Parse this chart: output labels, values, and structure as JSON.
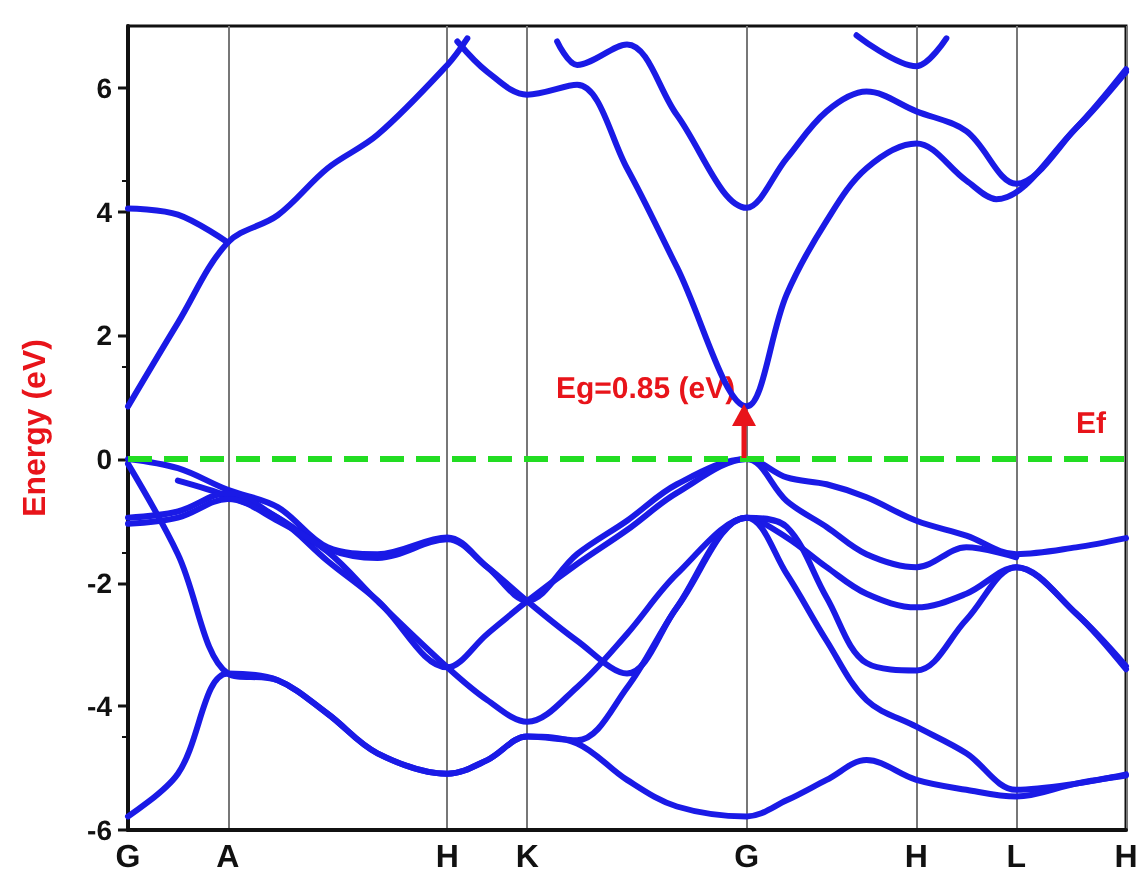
{
  "chart_data": {
    "type": "line",
    "ylabel": "Energy (eV)",
    "categories": [
      "G",
      null,
      null,
      null,
      null,
      null,
      null,
      null,
      null,
      null,
      "A",
      null,
      null,
      null,
      null,
      null,
      null,
      null,
      null,
      null,
      null,
      null,
      null,
      null,
      null,
      null,
      null,
      null,
      null,
      null,
      null,
      null,
      "H",
      null,
      null,
      null,
      null,
      null,
      null,
      null,
      "K",
      null,
      null,
      null,
      null,
      null,
      null,
      null,
      null,
      null,
      null,
      null,
      null,
      null,
      null,
      null,
      null,
      null,
      null,
      null,
      null,
      null,
      "G",
      null,
      null,
      null,
      null,
      null,
      null,
      null,
      null,
      null,
      null,
      null,
      null,
      null,
      null,
      null,
      null,
      "H",
      null,
      null,
      null,
      null,
      null,
      null,
      null,
      null,
      null,
      "L",
      null,
      null,
      null,
      null,
      null,
      null,
      null,
      null,
      null,
      null,
      "H"
    ],
    "ylim": [
      -6,
      7
    ],
    "yticks": [
      -6,
      -4,
      -2,
      0,
      2,
      4,
      6
    ],
    "grid": "x",
    "marker": "none",
    "line_style": "solid",
    "series": [
      {
        "color": "#1a1ae6",
        "values": [
          0.85,
          null,
          null,
          null,
          null,
          2.2,
          null,
          null,
          null,
          null,
          3.5,
          null,
          null,
          null,
          null,
          3.94,
          null,
          null,
          null,
          null,
          4.7,
          null,
          null,
          null,
          null,
          5.24,
          null,
          null,
          null,
          null,
          null,
          null,
          6.37,
          null,
          6.8,
          null,
          null,
          null,
          null,
          null,
          null,
          null,
          null,
          null,
          null,
          null,
          null,
          null,
          null,
          null,
          null,
          null,
          null,
          null,
          null,
          null,
          null,
          null,
          null,
          null,
          null,
          null,
          null,
          null,
          null,
          null,
          null,
          null,
          null,
          null,
          null,
          null,
          null,
          null,
          null,
          null,
          null,
          null,
          null,
          null,
          null,
          null,
          null,
          null,
          null,
          null,
          null,
          null,
          null,
          null,
          null,
          null,
          null,
          null,
          null,
          null,
          null,
          null,
          null,
          null,
          null
        ]
      },
      {
        "color": "#1a1ae6",
        "values": [
          4.05,
          null,
          null,
          null,
          null,
          3.95,
          null,
          null,
          null,
          null,
          3.5,
          null,
          null,
          null,
          null,
          null,
          null,
          null,
          null,
          null,
          null,
          null,
          null,
          null,
          null,
          null,
          null,
          null,
          null,
          null,
          null,
          null,
          null,
          null,
          null,
          null,
          null,
          null,
          null,
          null,
          null,
          null,
          null,
          null,
          null,
          null,
          null,
          null,
          null,
          null,
          null,
          null,
          null,
          null,
          null,
          null,
          null,
          null,
          null,
          null,
          null,
          null,
          null,
          null,
          null,
          null,
          null,
          null,
          null,
          null,
          null,
          null,
          null,
          null,
          null,
          null,
          null,
          null,
          null,
          null,
          null,
          null,
          null,
          null,
          null,
          null,
          null,
          null,
          null,
          null,
          null,
          null,
          null,
          null,
          null,
          null,
          null,
          null,
          null,
          null,
          null
        ]
      },
      {
        "color": "#1a1ae6",
        "values": [
          null,
          null,
          null,
          null,
          null,
          null,
          null,
          null,
          null,
          null,
          null,
          null,
          null,
          null,
          null,
          null,
          null,
          null,
          null,
          null,
          null,
          null,
          null,
          null,
          null,
          null,
          null,
          null,
          null,
          null,
          null,
          null,
          null,
          6.75,
          null,
          null,
          6.26,
          null,
          null,
          null,
          5.89,
          null,
          null,
          null,
          null,
          6.05,
          null,
          null,
          null,
          null,
          4.7,
          null,
          null,
          null,
          null,
          3.1,
          null,
          null,
          null,
          null,
          null,
          null,
          0.85,
          null,
          null,
          null,
          2.66,
          null,
          null,
          null,
          3.85,
          null,
          null,
          null,
          4.7,
          null,
          null,
          null,
          null,
          5.1,
          null,
          null,
          null,
          null,
          4.5,
          null,
          null,
          4.2,
          null,
          null,
          null,
          null,
          null,
          null,
          null,
          5.35,
          null,
          null,
          null,
          null,
          6.26
        ]
      },
      {
        "color": "#1a1ae6",
        "values": [
          null,
          null,
          null,
          null,
          null,
          null,
          null,
          null,
          null,
          null,
          null,
          null,
          null,
          null,
          null,
          null,
          null,
          null,
          null,
          null,
          null,
          null,
          null,
          null,
          null,
          null,
          null,
          null,
          null,
          null,
          null,
          null,
          null,
          null,
          null,
          null,
          null,
          null,
          null,
          null,
          null,
          null,
          null,
          6.75,
          null,
          6.37,
          null,
          null,
          null,
          null,
          6.7,
          null,
          null,
          null,
          null,
          5.56,
          null,
          null,
          null,
          null,
          null,
          null,
          4.06,
          null,
          null,
          null,
          4.86,
          null,
          null,
          null,
          5.62,
          null,
          null,
          null,
          5.94,
          null,
          null,
          null,
          null,
          5.62,
          null,
          null,
          null,
          null,
          5.3,
          null,
          null,
          null,
          null,
          4.45,
          null,
          null,
          null,
          null,
          null,
          5.35,
          null,
          null,
          null,
          null,
          6.3
        ]
      },
      {
        "color": "#1a1ae6",
        "values": [
          null,
          null,
          null,
          null,
          null,
          null,
          null,
          null,
          null,
          null,
          null,
          null,
          null,
          null,
          null,
          null,
          null,
          null,
          null,
          null,
          null,
          null,
          null,
          null,
          null,
          null,
          null,
          null,
          null,
          null,
          null,
          null,
          null,
          null,
          null,
          null,
          null,
          null,
          null,
          null,
          null,
          null,
          null,
          null,
          null,
          null,
          null,
          null,
          null,
          null,
          null,
          null,
          null,
          null,
          null,
          null,
          null,
          null,
          null,
          null,
          null,
          null,
          null,
          null,
          null,
          null,
          null,
          null,
          null,
          null,
          null,
          null,
          null,
          6.85,
          null,
          null,
          null,
          null,
          null,
          6.35,
          null,
          null,
          6.8,
          null,
          null,
          null,
          null,
          null,
          null,
          null,
          null,
          null,
          null,
          null,
          null,
          null,
          null,
          null,
          null,
          null,
          null
        ]
      },
      {
        "color": "#1a1ae6",
        "values": [
          0,
          null,
          null,
          null,
          null,
          -0.15,
          null,
          null,
          null,
          null,
          -0.5,
          null,
          null,
          null,
          null,
          -0.78,
          null,
          null,
          null,
          null,
          -1.43,
          null,
          null,
          null,
          null,
          -1.54,
          null,
          null,
          null,
          null,
          null,
          null,
          -1.27,
          null,
          null,
          null,
          -1.75,
          null,
          null,
          null,
          -2.29,
          null,
          null,
          null,
          null,
          -1.54,
          null,
          null,
          null,
          null,
          -1.0,
          null,
          null,
          null,
          null,
          -0.41,
          null,
          null,
          null,
          null,
          null,
          null,
          0,
          null,
          null,
          null,
          -0.3,
          null,
          null,
          null,
          -0.41,
          null,
          null,
          null,
          -0.62,
          null,
          null,
          null,
          null,
          -1.0,
          null,
          null,
          null,
          null,
          -1.24,
          null,
          null,
          null,
          null,
          -1.54,
          null,
          null,
          null,
          null,
          null,
          -1.43,
          null,
          null,
          null,
          null,
          -1.28
        ]
      },
      {
        "color": "#1a1ae6",
        "values": [
          null,
          null,
          null,
          null,
          null,
          -0.35,
          null,
          null,
          null,
          null,
          -0.6,
          null,
          null,
          null,
          null,
          -0.95,
          null,
          null,
          null,
          null,
          -1.65,
          null,
          null,
          null,
          null,
          -2.29,
          null,
          null,
          null,
          null,
          null,
          null,
          -3.37,
          null,
          null,
          null,
          -2.83,
          null,
          null,
          null,
          -2.3,
          null,
          null,
          null,
          null,
          -1.7,
          null,
          null,
          null,
          null,
          -1.15,
          null,
          null,
          null,
          null,
          -0.55,
          null,
          null,
          null,
          null,
          null,
          null,
          0,
          null,
          null,
          null,
          -0.68,
          null,
          null,
          null,
          -1.1,
          null,
          null,
          null,
          -1.54,
          null,
          null,
          null,
          null,
          -1.75,
          null,
          null,
          null,
          null,
          -1.43,
          null,
          null,
          null,
          null,
          -1.59,
          null,
          null,
          null,
          null,
          null,
          null,
          null,
          null,
          null,
          null,
          null
        ]
      },
      {
        "color": "#1a1ae6",
        "values": [
          -0.95,
          null,
          null,
          null,
          null,
          -0.85,
          null,
          null,
          null,
          null,
          -0.55,
          null,
          null,
          null,
          null,
          -0.95,
          null,
          null,
          null,
          null,
          -1.45,
          null,
          null,
          null,
          null,
          -1.6,
          null,
          null,
          null,
          null,
          null,
          null,
          -1.3,
          null,
          null,
          null,
          -1.75,
          null,
          null,
          null,
          -2.3,
          null,
          null,
          null,
          null,
          -2.94,
          null,
          null,
          null,
          null,
          -3.47,
          null,
          null,
          null,
          null,
          -2.4,
          null,
          null,
          null,
          null,
          null,
          null,
          -0.95,
          null,
          null,
          null,
          -1.27,
          null,
          null,
          null,
          -1.75,
          null,
          null,
          null,
          -2.18,
          null,
          null,
          null,
          null,
          -2.4,
          null,
          null,
          null,
          null,
          -2.18,
          null,
          null,
          null,
          null,
          -1.75,
          null,
          null,
          null,
          null,
          null,
          -2.5,
          null,
          null,
          null,
          null,
          -3.35
        ]
      },
      {
        "color": "#1a1ae6",
        "values": [
          -1.05,
          null,
          null,
          null,
          null,
          -0.95,
          null,
          null,
          null,
          null,
          -0.65,
          null,
          null,
          null,
          null,
          -1.0,
          null,
          null,
          null,
          null,
          -1.5,
          null,
          null,
          null,
          null,
          -2.3,
          null,
          null,
          null,
          null,
          null,
          null,
          -3.37,
          null,
          null,
          null,
          -3.9,
          null,
          null,
          null,
          -4.25,
          null,
          null,
          null,
          null,
          -3.69,
          null,
          null,
          null,
          null,
          -2.83,
          null,
          null,
          null,
          null,
          -1.86,
          null,
          null,
          null,
          null,
          null,
          null,
          -0.95,
          null,
          null,
          null,
          -1.86,
          null,
          null,
          null,
          -2.94,
          null,
          null,
          null,
          -3.9,
          null,
          null,
          null,
          null,
          -4.33,
          null,
          null,
          null,
          null,
          -4.76,
          null,
          null,
          null,
          null,
          -5.35,
          null,
          null,
          null,
          null,
          null,
          -5.25,
          null,
          null,
          null,
          null,
          -5.1
        ]
      },
      {
        "color": "#1a1ae6",
        "values": [
          -0.08,
          null,
          null,
          null,
          null,
          -1.54,
          null,
          null,
          null,
          null,
          -3.47,
          null,
          null,
          null,
          null,
          -3.58,
          null,
          null,
          null,
          null,
          -4.12,
          null,
          null,
          null,
          null,
          -4.76,
          null,
          null,
          null,
          null,
          null,
          null,
          -5.09,
          null,
          null,
          null,
          -4.87,
          null,
          null,
          null,
          -4.49,
          null,
          null,
          null,
          null,
          -4.6,
          null,
          null,
          null,
          null,
          -5.19,
          null,
          null,
          null,
          null,
          -5.62,
          null,
          null,
          null,
          null,
          null,
          null,
          -5.78,
          null,
          null,
          null,
          -5.52,
          null,
          null,
          null,
          -5.19,
          null,
          null,
          null,
          -4.87,
          null,
          null,
          null,
          null,
          -5.19,
          null,
          null,
          null,
          null,
          -5.35,
          null,
          null,
          null,
          null,
          -5.46,
          null,
          null,
          null,
          null,
          null,
          -5.25,
          null,
          null,
          null,
          null,
          -5.12
        ]
      },
      {
        "color": "#1a1ae6",
        "values": [
          -5.78,
          null,
          null,
          null,
          null,
          -5.09,
          null,
          null,
          null,
          null,
          -3.47,
          null,
          null,
          null,
          null,
          -3.58,
          null,
          null,
          null,
          null,
          -4.12,
          null,
          null,
          null,
          null,
          -4.76,
          null,
          null,
          null,
          null,
          null,
          null,
          -5.09,
          null,
          null,
          null,
          -4.87,
          null,
          null,
          null,
          -4.49,
          null,
          null,
          null,
          null,
          -4.55,
          null,
          null,
          null,
          null,
          -3.7,
          null,
          null,
          null,
          null,
          -2.4,
          null,
          null,
          null,
          null,
          null,
          null,
          -0.95,
          null,
          null,
          null,
          -1.1,
          null,
          null,
          null,
          -2.24,
          null,
          null,
          null,
          -3.3,
          null,
          null,
          null,
          null,
          -3.42,
          null,
          null,
          null,
          null,
          -2.6,
          null,
          null,
          null,
          null,
          -1.75,
          null,
          null,
          null,
          null,
          null,
          -2.5,
          null,
          null,
          null,
          null,
          -3.4
        ]
      }
    ],
    "ref_lines": [
      {
        "axis": "y",
        "value": 0,
        "label": "Ef",
        "color": "#22dd22",
        "line_style": "dashed"
      }
    ],
    "annotations": [
      "Eg=0.85 (eV)"
    ]
  }
}
